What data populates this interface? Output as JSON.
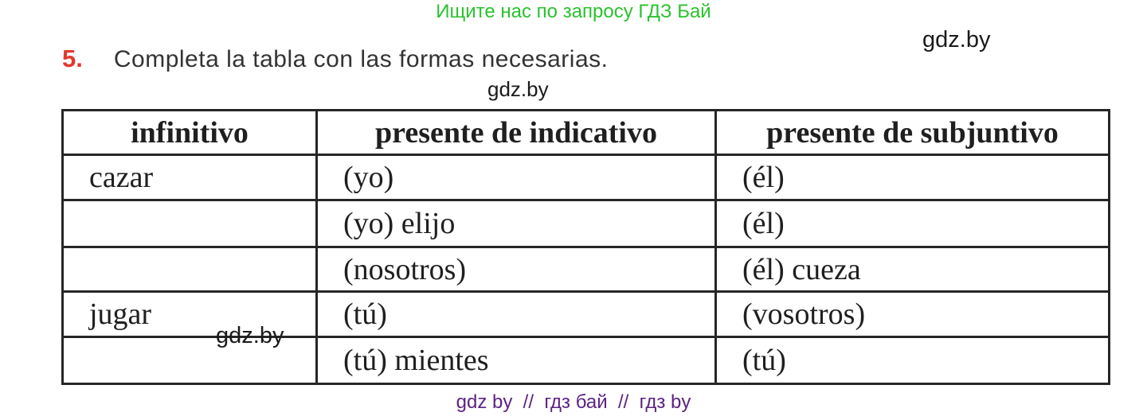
{
  "banner": {
    "text": "Ищите нас по запросу ГДЗ Бай",
    "color": "#2bc22e"
  },
  "watermark": {
    "text": "gdz.by"
  },
  "exercise": {
    "number": "5.",
    "number_color": "#e2382f",
    "instruction": "Completa la tabla con las formas necesarias."
  },
  "table": {
    "headers": [
      "infinitivo",
      "presente de indicativo",
      "presente de subjuntivo"
    ],
    "rows": [
      [
        "cazar",
        "(yo)",
        "(él)"
      ],
      [
        "",
        "(yo) elijo",
        "(él)"
      ],
      [
        "",
        "(nosotros)",
        "(él) cueza"
      ],
      [
        "jugar",
        "(tú)",
        "(vosotros)"
      ],
      [
        "",
        "(tú) mientes",
        "(tú)"
      ]
    ]
  },
  "footer": {
    "text": "gdz by  //  гдз бай  //  гдз by",
    "color": "#5b2483"
  }
}
